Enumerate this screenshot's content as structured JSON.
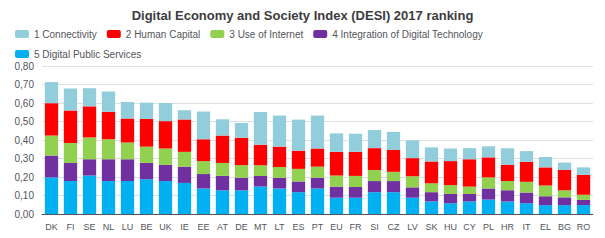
{
  "chart_data": {
    "type": "bar",
    "title": "Digital Economy and Society Index (DESI) 2017 ranking",
    "stacked": true,
    "grid": true,
    "legend": "upper left",
    "categories": [
      "DK",
      "FI",
      "SE",
      "NL",
      "LU",
      "BE",
      "UK",
      "IE",
      "EE",
      "AT",
      "DE",
      "MT",
      "LT",
      "ES",
      "PT",
      "EU",
      "FR",
      "SI",
      "CZ",
      "LV",
      "SK",
      "HU",
      "CY",
      "PL",
      "HR",
      "IT",
      "EL",
      "BG",
      "RO"
    ],
    "series": [
      {
        "name": "5 Digital Public Services",
        "color": "#00b0f0",
        "values": [
          0.198,
          0.178,
          0.208,
          0.178,
          0.178,
          0.188,
          0.178,
          0.168,
          0.138,
          0.128,
          0.128,
          0.148,
          0.138,
          0.118,
          0.138,
          0.088,
          0.088,
          0.118,
          0.118,
          0.088,
          0.068,
          0.058,
          0.068,
          0.078,
          0.068,
          0.058,
          0.048,
          0.048,
          0.048
        ]
      },
      {
        "name": "4 Integration of Digital Technology",
        "color": "#7030a0",
        "values": [
          0.118,
          0.098,
          0.088,
          0.118,
          0.118,
          0.088,
          0.088,
          0.088,
          0.078,
          0.078,
          0.068,
          0.058,
          0.058,
          0.058,
          0.058,
          0.06,
          0.058,
          0.06,
          0.06,
          0.056,
          0.05,
          0.05,
          0.04,
          0.06,
          0.06,
          0.058,
          0.048,
          0.042,
          0.028
        ]
      },
      {
        "name": "3 Use of Internet",
        "color": "#92d050",
        "values": [
          0.108,
          0.108,
          0.118,
          0.108,
          0.09,
          0.088,
          0.088,
          0.08,
          0.07,
          0.07,
          0.068,
          0.058,
          0.058,
          0.068,
          0.06,
          0.06,
          0.06,
          0.06,
          0.05,
          0.06,
          0.048,
          0.048,
          0.04,
          0.06,
          0.05,
          0.058,
          0.058,
          0.038,
          0.028
        ]
      },
      {
        "name": "2 Human Capital",
        "color": "#ff0000",
        "values": [
          0.175,
          0.175,
          0.168,
          0.148,
          0.13,
          0.15,
          0.148,
          0.175,
          0.118,
          0.148,
          0.148,
          0.11,
          0.11,
          0.098,
          0.098,
          0.128,
          0.13,
          0.118,
          0.118,
          0.098,
          0.118,
          0.13,
          0.148,
          0.108,
          0.088,
          0.108,
          0.098,
          0.11,
          0.108
        ]
      },
      {
        "name": "1 Connectivity",
        "color": "#92cddc",
        "values": [
          0.114,
          0.12,
          0.098,
          0.11,
          0.09,
          0.088,
          0.098,
          0.05,
          0.15,
          0.088,
          0.08,
          0.178,
          0.168,
          0.168,
          0.178,
          0.1,
          0.098,
          0.098,
          0.098,
          0.096,
          0.076,
          0.068,
          0.06,
          0.06,
          0.09,
          0.058,
          0.056,
          0.04,
          0.04
        ]
      }
    ],
    "ylim": [
      0.0,
      0.8
    ],
    "yticks": [
      {
        "value": 0.0,
        "label": "0,00"
      },
      {
        "value": 0.1,
        "label": "0,10"
      },
      {
        "value": 0.2,
        "label": "0,20"
      },
      {
        "value": 0.3,
        "label": "0,30"
      },
      {
        "value": 0.4,
        "label": "0,40"
      },
      {
        "value": 0.5,
        "label": "0,50"
      },
      {
        "value": 0.6,
        "label": "0,60"
      },
      {
        "value": 0.7,
        "label": "0,70"
      },
      {
        "value": 0.8,
        "label": "0,80"
      }
    ]
  }
}
